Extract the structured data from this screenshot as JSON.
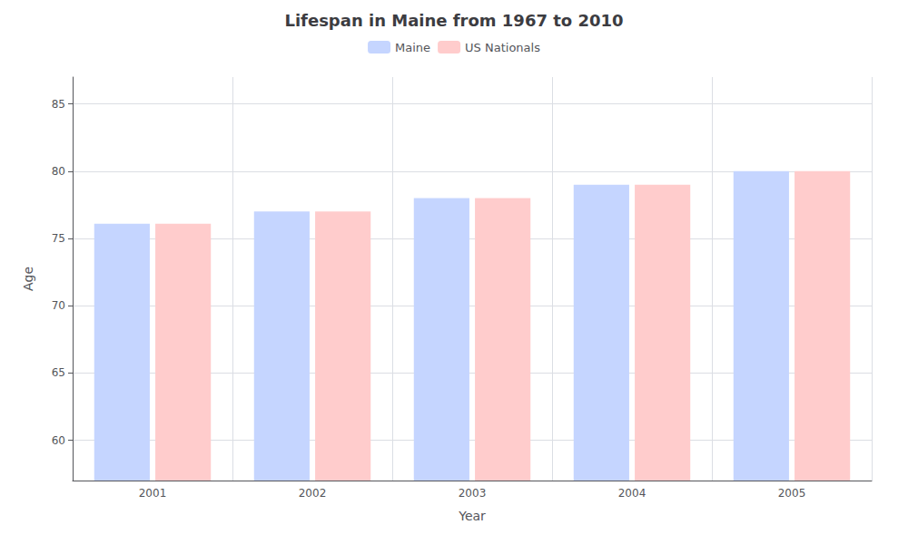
{
  "chart_data": {
    "type": "bar",
    "title": "Lifespan in Maine from 1967 to 2010",
    "x_label": "Year",
    "y_label": "Age",
    "categories": [
      2001,
      2002,
      2003,
      2004,
      2005
    ],
    "series": [
      {
        "name": "Maine",
        "color": "#c5d5ff",
        "values": [
          76.1,
          77.0,
          78.0,
          79.0,
          80.0
        ]
      },
      {
        "name": "US Nationals",
        "color": "#ffcccc",
        "values": [
          76.1,
          77.0,
          78.0,
          79.0,
          80.0
        ]
      }
    ],
    "ylim": [
      57,
      87
    ],
    "yticks": [
      60,
      65,
      70,
      75,
      80,
      85
    ],
    "grid": true,
    "legend": "top"
  }
}
